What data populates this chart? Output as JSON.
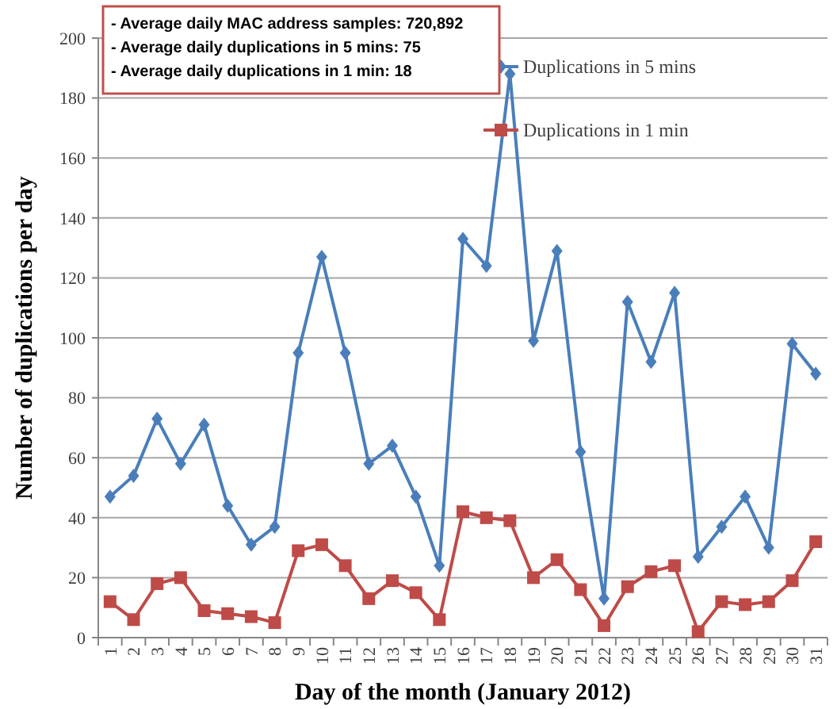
{
  "chart_data": {
    "type": "line",
    "xlabel": "Day of  the month (January 2012)",
    "ylabel": "Number of  duplications per day",
    "annotations": [
      "- Average daily MAC address samples: 720,892",
      "- Average  daily duplications in 5 mins: 75",
      "- Average daily  duplications in 1 min: 18"
    ],
    "categories": [
      "1",
      "2",
      "3",
      "4",
      "5",
      "6",
      "7",
      "8",
      "9",
      "10",
      "11",
      "12",
      "13",
      "14",
      "15",
      "16",
      "17",
      "18",
      "19",
      "20",
      "21",
      "22",
      "23",
      "24",
      "25",
      "26",
      "27",
      "28",
      "29",
      "30",
      "31"
    ],
    "series": [
      {
        "name": "Duplications in 5 mins",
        "color": "#4a7ebb",
        "marker": "diamond",
        "values": [
          47,
          54,
          73,
          58,
          71,
          44,
          31,
          37,
          95,
          127,
          95,
          58,
          64,
          47,
          24,
          133,
          124,
          188,
          99,
          129,
          62,
          13,
          112,
          92,
          115,
          27,
          37,
          47,
          30,
          98,
          88
        ]
      },
      {
        "name": "Duplications in 1 min",
        "color": "#be4b48",
        "marker": "square",
        "values": [
          12,
          6,
          18,
          20,
          9,
          8,
          7,
          5,
          29,
          31,
          24,
          13,
          19,
          15,
          6,
          42,
          40,
          39,
          20,
          26,
          16,
          4,
          17,
          22,
          24,
          2,
          12,
          11,
          12,
          19,
          32
        ]
      }
    ],
    "ylim": [
      0,
      200
    ],
    "yticks": [
      0,
      20,
      40,
      60,
      80,
      100,
      120,
      140,
      160,
      180,
      200
    ],
    "grid": "y",
    "legend": "top right",
    "line_style": "solid"
  }
}
